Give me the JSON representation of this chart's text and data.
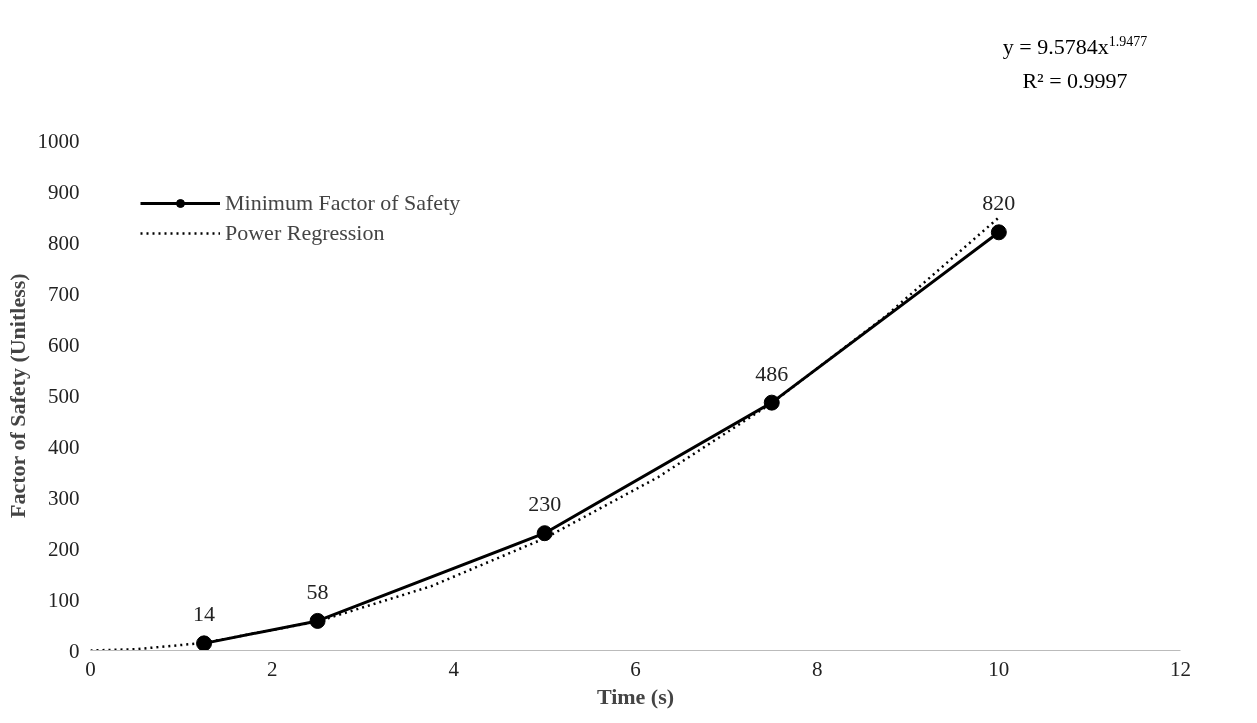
{
  "chart_data": {
    "type": "line",
    "xlabel": "Time (s)",
    "ylabel": "Factor of Safety (Unitless)",
    "xlim": [
      0,
      12
    ],
    "xticks": [
      0,
      2,
      4,
      6,
      8,
      10,
      12
    ],
    "ylim": [
      0,
      1000
    ],
    "yticks": [
      0,
      100,
      200,
      300,
      400,
      500,
      600,
      700,
      800,
      900,
      1000
    ],
    "grid": false,
    "legend": "top left",
    "annotations": [
      "y = 9.5784x$^{1.9477}$",
      "R² = 0.9997"
    ],
    "series": [
      {
        "name": "Minimum Factor of Safety",
        "color": "#000000",
        "marker": "circle",
        "line_style": "solid",
        "data_labels": true,
        "x": [
          1.25,
          2.5,
          5,
          7.5,
          10
        ],
        "values": [
          14,
          58,
          230,
          486,
          820
        ]
      },
      {
        "name": "Power Regression",
        "color": "#000000",
        "marker": "none",
        "line_style": "dotted",
        "x": [
          0,
          0.5,
          1.25,
          2.5,
          3.75,
          5,
          6.25,
          7.5,
          8.75,
          10
        ],
        "values": [
          0,
          2.5,
          15,
          57,
          126,
          220,
          340,
          485,
          655,
          849
        ]
      }
    ]
  }
}
